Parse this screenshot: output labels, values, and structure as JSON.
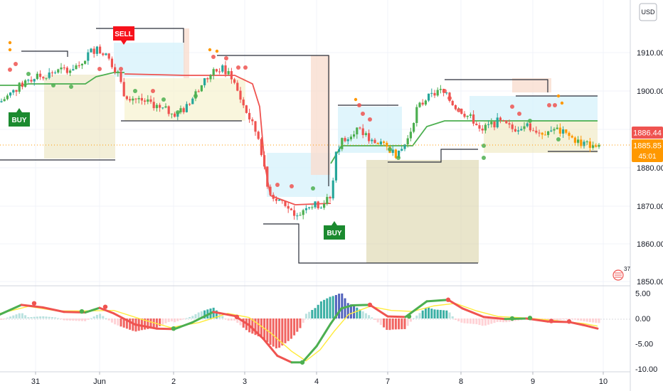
{
  "chart_data": {
    "type": "candlestick",
    "currency": "USD",
    "x_labels": [
      "31",
      "Jun",
      "2",
      "3",
      "4",
      "7",
      "8",
      "9",
      "10"
    ],
    "price_axis": {
      "ticks": [
        "1910.00",
        "1900.00",
        "1880.00",
        "1870.00",
        "1860.00",
        "1850.00"
      ],
      "ylim": [
        1848,
        1914
      ],
      "last_price_label": "1886.44",
      "current_price_label": "1885.85",
      "countdown_label": "45:01"
    },
    "oscillator_axis": {
      "ticks": [
        "5.00",
        "0.00",
        "-5.00",
        "-10.00"
      ],
      "ylim": [
        -10,
        5
      ]
    },
    "signals": [
      {
        "label": "BUY",
        "x": 27,
        "price": 1886.5
      },
      {
        "label": "SELL",
        "x": 173,
        "price": 1911.5
      },
      {
        "label": "BUY",
        "x": 470,
        "price": 1862.5
      }
    ],
    "price_line": [
      [
        0,
        1897
      ],
      [
        20,
        1900
      ],
      [
        40,
        1903
      ],
      [
        60,
        1904
      ],
      [
        80,
        1905
      ],
      [
        100,
        1906
      ],
      [
        115,
        1907
      ],
      [
        125,
        1910
      ],
      [
        135,
        1911
      ],
      [
        150,
        1909
      ],
      [
        165,
        1905
      ],
      [
        175,
        1899
      ],
      [
        190,
        1898
      ],
      [
        210,
        1897
      ],
      [
        230,
        1895
      ],
      [
        250,
        1894
      ],
      [
        265,
        1896
      ],
      [
        280,
        1901
      ],
      [
        295,
        1904
      ],
      [
        310,
        1906
      ],
      [
        325,
        1904
      ],
      [
        340,
        1897
      ],
      [
        355,
        1891
      ],
      [
        365,
        1887
      ],
      [
        375,
        1875
      ],
      [
        385,
        1872
      ],
      [
        400,
        1871
      ],
      [
        415,
        1866
      ],
      [
        430,
        1870
      ],
      [
        450,
        1870
      ],
      [
        465,
        1872
      ],
      [
        472,
        1883
      ],
      [
        480,
        1887
      ],
      [
        500,
        1890
      ],
      [
        515,
        1888
      ],
      [
        530,
        1886
      ],
      [
        545,
        1885
      ],
      [
        560,
        1883
      ],
      [
        575,
        1888
      ],
      [
        585,
        1895
      ],
      [
        600,
        1898
      ],
      [
        620,
        1900
      ],
      [
        640,
        1896
      ],
      [
        660,
        1893
      ],
      [
        680,
        1890
      ],
      [
        700,
        1892
      ],
      [
        720,
        1890
      ],
      [
        740,
        1891
      ],
      [
        760,
        1889
      ],
      [
        780,
        1890
      ],
      [
        800,
        1888
      ],
      [
        820,
        1886
      ],
      [
        840,
        1885.85
      ]
    ],
    "oscillator_fast": [
      [
        0,
        0.8
      ],
      [
        30,
        2.7
      ],
      [
        60,
        2.2
      ],
      [
        90,
        1.3
      ],
      [
        120,
        1.2
      ],
      [
        140,
        2.1
      ],
      [
        160,
        1.0
      ],
      [
        190,
        -1.2
      ],
      [
        220,
        -2.0
      ],
      [
        245,
        -2.1
      ],
      [
        270,
        -0.8
      ],
      [
        300,
        1.3
      ],
      [
        330,
        0.5
      ],
      [
        350,
        -1.3
      ],
      [
        370,
        -4.0
      ],
      [
        390,
        -7.4
      ],
      [
        410,
        -8.7
      ],
      [
        425,
        -8.7
      ],
      [
        445,
        -5.5
      ],
      [
        465,
        -1.0
      ],
      [
        480,
        2.0
      ],
      [
        495,
        2.6
      ],
      [
        520,
        2.7
      ],
      [
        545,
        0.4
      ],
      [
        570,
        0.3
      ],
      [
        600,
        3.4
      ],
      [
        630,
        3.7
      ],
      [
        650,
        2.0
      ],
      [
        680,
        0.3
      ],
      [
        710,
        -0.1
      ],
      [
        740,
        0.0
      ],
      [
        770,
        -0.6
      ],
      [
        800,
        -0.7
      ],
      [
        820,
        -1.3
      ],
      [
        840,
        -2.0
      ]
    ],
    "oscillator_slow": [
      [
        0,
        1.0
      ],
      [
        40,
        2.4
      ],
      [
        80,
        1.5
      ],
      [
        120,
        1.5
      ],
      [
        160,
        1.6
      ],
      [
        200,
        -0.2
      ],
      [
        240,
        -1.8
      ],
      [
        280,
        -0.8
      ],
      [
        320,
        1.0
      ],
      [
        350,
        0.2
      ],
      [
        380,
        -2.8
      ],
      [
        410,
        -6.5
      ],
      [
        430,
        -8.4
      ],
      [
        450,
        -6.2
      ],
      [
        470,
        -2.5
      ],
      [
        490,
        0.8
      ],
      [
        520,
        2.4
      ],
      [
        550,
        1.6
      ],
      [
        580,
        1.4
      ],
      [
        610,
        2.5
      ],
      [
        640,
        3.0
      ],
      [
        670,
        1.5
      ],
      [
        700,
        0.4
      ],
      [
        740,
        0.1
      ],
      [
        780,
        -0.4
      ],
      [
        820,
        -1.0
      ],
      [
        840,
        -1.5
      ]
    ]
  },
  "colors": {
    "up": "#26a69a",
    "up_bright": "#4caf50",
    "down": "#ef5350",
    "orange": "#ff9800",
    "mid_line": "#4caf50",
    "hist_pos": "#26a69a",
    "hist_neg": "#ef5350",
    "slow_line": "#ffeb3b"
  },
  "icons": {
    "flag": "us-flag-icon",
    "badge_count": "37"
  }
}
